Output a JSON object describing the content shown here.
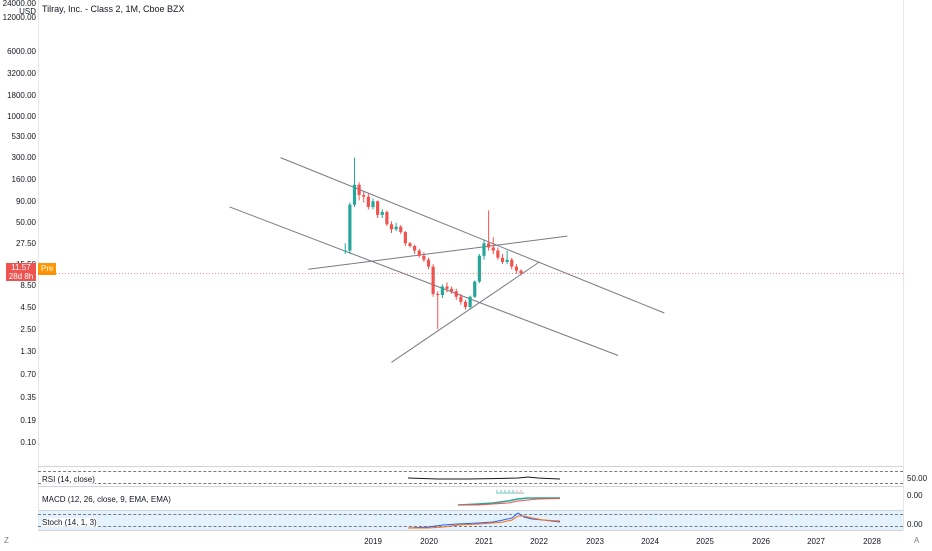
{
  "header": {
    "title": "Tilray, Inc. - Class 2, 1M, Cboe BZX",
    "top_value": "24000.00",
    "currency": "USD"
  },
  "price_axis": {
    "ticks": [
      "12000.00",
      "6000.00",
      "3200.00",
      "1800.00",
      "1000.00",
      "530.00",
      "300.00",
      "160.00",
      "90.00",
      "50.00",
      "27.50",
      "15.50",
      "8.50",
      "4.50",
      "2.50",
      "1.30",
      "0.70",
      "0.35",
      "0.19",
      "0.10"
    ]
  },
  "last_price": {
    "value": "11.57",
    "countdown": "28d 8h",
    "badge": "Pre",
    "color": "#ef5350"
  },
  "indicators": {
    "rsi": {
      "label": "RSI (14, close)",
      "value": "50.00"
    },
    "macd": {
      "label": "MACD (12, 26, close, 9, EMA, EMA)",
      "value": "0.00"
    },
    "stoch": {
      "label": "Stoch (14, 1, 3)",
      "value": "0.00"
    }
  },
  "time_axis": {
    "years": [
      "2019",
      "2020",
      "2021",
      "2022",
      "2023",
      "2024",
      "2025",
      "2026",
      "2027",
      "2028"
    ]
  },
  "corners": {
    "left": "Z",
    "right": "A"
  },
  "colors": {
    "up": "#26a69a",
    "down": "#ef5350",
    "trendline": "#787b86",
    "badge": "#ff9800",
    "stoch_band": "#e3f2fd"
  },
  "chart_data": {
    "type": "candlestick",
    "symbol": "Tilray, Inc. - Class 2",
    "interval": "1M",
    "scale": "log",
    "candles": [
      {
        "date": "2018-07",
        "open": 22,
        "high": 27,
        "low": 20,
        "close": 22
      },
      {
        "date": "2018-08",
        "open": 22,
        "high": 85,
        "low": 20,
        "close": 80
      },
      {
        "date": "2018-09",
        "open": 80,
        "high": 300,
        "low": 75,
        "close": 140
      },
      {
        "date": "2018-10",
        "open": 140,
        "high": 150,
        "low": 90,
        "close": 105
      },
      {
        "date": "2018-11",
        "open": 105,
        "high": 115,
        "low": 85,
        "close": 100
      },
      {
        "date": "2018-12",
        "open": 100,
        "high": 110,
        "low": 70,
        "close": 75
      },
      {
        "date": "2019-01",
        "open": 75,
        "high": 95,
        "low": 70,
        "close": 88
      },
      {
        "date": "2019-02",
        "open": 88,
        "high": 90,
        "low": 55,
        "close": 60
      },
      {
        "date": "2019-03",
        "open": 60,
        "high": 70,
        "low": 55,
        "close": 65
      },
      {
        "date": "2019-04",
        "open": 65,
        "high": 68,
        "low": 44,
        "close": 46
      },
      {
        "date": "2019-05",
        "open": 46,
        "high": 50,
        "low": 36,
        "close": 40
      },
      {
        "date": "2019-06",
        "open": 40,
        "high": 48,
        "low": 38,
        "close": 43
      },
      {
        "date": "2019-07",
        "open": 43,
        "high": 45,
        "low": 35,
        "close": 37
      },
      {
        "date": "2019-08",
        "open": 37,
        "high": 38,
        "low": 25,
        "close": 27
      },
      {
        "date": "2019-09",
        "open": 27,
        "high": 28,
        "low": 24,
        "close": 25
      },
      {
        "date": "2019-10",
        "open": 25,
        "high": 26,
        "low": 20,
        "close": 22
      },
      {
        "date": "2019-11",
        "open": 22,
        "high": 23,
        "low": 18,
        "close": 19
      },
      {
        "date": "2019-12",
        "open": 19,
        "high": 21,
        "low": 16,
        "close": 17
      },
      {
        "date": "2020-01",
        "open": 17,
        "high": 18,
        "low": 13,
        "close": 14
      },
      {
        "date": "2020-02",
        "open": 14,
        "high": 15,
        "low": 6,
        "close": 6.5
      },
      {
        "date": "2020-03",
        "open": 6.5,
        "high": 7,
        "low": 2.4,
        "close": 6.3
      },
      {
        "date": "2020-04",
        "open": 6.3,
        "high": 8.5,
        "low": 5.8,
        "close": 8
      },
      {
        "date": "2020-05",
        "open": 8,
        "high": 9,
        "low": 6.8,
        "close": 7.5
      },
      {
        "date": "2020-06",
        "open": 7.5,
        "high": 8,
        "low": 6.5,
        "close": 7
      },
      {
        "date": "2020-07",
        "open": 7,
        "high": 7.5,
        "low": 5.5,
        "close": 6
      },
      {
        "date": "2020-08",
        "open": 6,
        "high": 6.5,
        "low": 4.8,
        "close": 5.2
      },
      {
        "date": "2020-09",
        "open": 5.2,
        "high": 5.5,
        "low": 4.2,
        "close": 4.5
      },
      {
        "date": "2020-10",
        "open": 4.5,
        "high": 6.2,
        "low": 4.3,
        "close": 6
      },
      {
        "date": "2020-11",
        "open": 6,
        "high": 9.5,
        "low": 5.8,
        "close": 9.2
      },
      {
        "date": "2020-12",
        "open": 9.2,
        "high": 20,
        "low": 8.8,
        "close": 19
      },
      {
        "date": "2021-01",
        "open": 19,
        "high": 30,
        "low": 17,
        "close": 27
      },
      {
        "date": "2021-02",
        "open": 27,
        "high": 68,
        "low": 22,
        "close": 24
      },
      {
        "date": "2021-03",
        "open": 24,
        "high": 32,
        "low": 20,
        "close": 22
      },
      {
        "date": "2021-04",
        "open": 22,
        "high": 24,
        "low": 17,
        "close": 18
      },
      {
        "date": "2021-05",
        "open": 18,
        "high": 20,
        "low": 15,
        "close": 16
      },
      {
        "date": "2021-06",
        "open": 16,
        "high": 22,
        "low": 15,
        "close": 17
      },
      {
        "date": "2021-07",
        "open": 17,
        "high": 18,
        "low": 13,
        "close": 14
      },
      {
        "date": "2021-08",
        "open": 14,
        "high": 15,
        "low": 11.5,
        "close": 12.5
      },
      {
        "date": "2021-09",
        "open": 12.5,
        "high": 13,
        "low": 11,
        "close": 11.57
      }
    ],
    "trendlines": [
      {
        "from": {
          "date": "2017-05",
          "price": 300
        },
        "to": {
          "date": "2024-04",
          "price": 3.8
        }
      },
      {
        "from": {
          "date": "2016-06",
          "price": 75
        },
        "to": {
          "date": "2023-06",
          "price": 1.15
        }
      },
      {
        "from": {
          "date": "2017-11",
          "price": 13
        },
        "to": {
          "date": "2022-07",
          "price": 33
        }
      },
      {
        "from": {
          "date": "2019-05",
          "price": 0.95
        },
        "to": {
          "date": "2022-01",
          "price": 16
        }
      }
    ]
  }
}
